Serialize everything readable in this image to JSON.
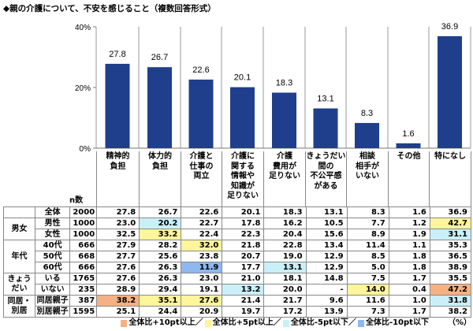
{
  "title": "◆親の介護について、不安を感じること（複数回答形式）",
  "chart_data": {
    "type": "bar",
    "title": "◆親の介護について、不安を感じること（複数回答形式）",
    "categories": [
      "精神的\n負担",
      "体力的\n負担",
      "介護と\n仕事の\n両立",
      "介護に\n関する\n情報や\n知識が\n足りない",
      "介護\n費用が\n足りない",
      "きょうだい\n間の\n不公平感\nがある",
      "相談\n相手が\nいない",
      "その他",
      "特になし"
    ],
    "values": [
      27.8,
      26.7,
      22.6,
      20.1,
      18.3,
      13.1,
      8.3,
      1.6,
      36.9
    ],
    "ylim": [
      0,
      40
    ],
    "yticks": [
      "0%",
      "20%",
      "40%"
    ],
    "ytick_values": [
      0,
      20,
      40
    ],
    "bar_color": "#1f3f8c",
    "grid": "vertical column separators",
    "data_labels": [
      "27.8",
      "26.7",
      "22.6",
      "20.1",
      "18.3",
      "13.1",
      "8.3",
      "1.6",
      "36.9"
    ]
  },
  "table": {
    "n_header": "n数",
    "highlight_colors": {
      "p10": "#f6b183",
      "p5": "#fff59a",
      "m5": "#c9f0f9",
      "m10": "#8eb8ee"
    },
    "groups": [
      {
        "label": "",
        "rows": [
          0
        ]
      },
      {
        "label": "男女",
        "rows": [
          1,
          2
        ]
      },
      {
        "label": "年代",
        "rows": [
          3,
          4,
          5
        ]
      },
      {
        "label": "きょうだい",
        "rows": [
          6,
          7
        ]
      },
      {
        "label": "同居・別居",
        "rows": [
          8,
          9
        ]
      }
    ],
    "rows": [
      {
        "label": "全体",
        "n": "2000",
        "values": [
          "27.8",
          "26.7",
          "22.6",
          "20.1",
          "18.3",
          "13.1",
          "8.3",
          "1.6",
          "36.9"
        ],
        "hl": [
          null,
          null,
          null,
          null,
          null,
          null,
          null,
          null,
          null
        ]
      },
      {
        "label": "男性",
        "n": "1000",
        "values": [
          "23.0",
          "20.2",
          "22.7",
          "17.8",
          "16.2",
          "10.5",
          "7.7",
          "1.2",
          "42.7"
        ],
        "hl": [
          null,
          "m5",
          null,
          null,
          null,
          null,
          null,
          null,
          "p5"
        ]
      },
      {
        "label": "女性",
        "n": "1000",
        "values": [
          "32.5",
          "33.2",
          "22.4",
          "22.3",
          "20.4",
          "15.6",
          "8.9",
          "1.9",
          "31.1"
        ],
        "hl": [
          null,
          "p5",
          null,
          null,
          null,
          null,
          null,
          null,
          "m5"
        ]
      },
      {
        "label": "40代",
        "n": "666",
        "values": [
          "27.9",
          "28.2",
          "32.0",
          "21.8",
          "22.8",
          "13.4",
          "11.4",
          "1.1",
          "35.3"
        ],
        "hl": [
          null,
          null,
          "p5",
          null,
          null,
          null,
          null,
          null,
          null
        ]
      },
      {
        "label": "50代",
        "n": "668",
        "values": [
          "27.7",
          "25.6",
          "23.8",
          "20.7",
          "19.0",
          "12.9",
          "8.5",
          "1.8",
          "36.5"
        ],
        "hl": [
          null,
          null,
          null,
          null,
          null,
          null,
          null,
          null,
          null
        ]
      },
      {
        "label": "60代",
        "n": "666",
        "values": [
          "27.6",
          "26.3",
          "11.9",
          "17.7",
          "13.1",
          "12.9",
          "5.0",
          "1.8",
          "38.9"
        ],
        "hl": [
          null,
          null,
          "m10",
          null,
          "m5",
          null,
          null,
          null,
          null
        ]
      },
      {
        "label": "いる",
        "n": "1765",
        "values": [
          "27.6",
          "26.3",
          "23.0",
          "21.0",
          "18.1",
          "14.8",
          "7.5",
          "1.7",
          "35.5"
        ],
        "hl": [
          null,
          null,
          null,
          null,
          null,
          null,
          null,
          null,
          null
        ]
      },
      {
        "label": "いない",
        "n": "235",
        "values": [
          "28.9",
          "29.4",
          "19.1",
          "13.2",
          "20.0",
          "-",
          "14.0",
          "0.4",
          "47.2"
        ],
        "hl": [
          null,
          null,
          null,
          "m5",
          null,
          null,
          "p5",
          null,
          "p10"
        ]
      },
      {
        "label": "同居親子",
        "n": "387",
        "values": [
          "38.2",
          "35.1",
          "27.6",
          "21.4",
          "21.7",
          "9.6",
          "11.6",
          "1.0",
          "31.8"
        ],
        "hl": [
          "p10",
          "p5",
          "p5",
          null,
          null,
          null,
          null,
          null,
          "m5"
        ]
      },
      {
        "label": "別居親子",
        "n": "1595",
        "values": [
          "25.1",
          "24.4",
          "20.9",
          "19.7",
          "17.2",
          "13.9",
          "7.3",
          "1.7",
          "38.2"
        ],
        "hl": [
          null,
          null,
          null,
          null,
          null,
          null,
          null,
          null,
          null
        ]
      }
    ]
  },
  "legend": [
    {
      "key": "p10",
      "label": "全体比+10pt以上／"
    },
    {
      "key": "p5",
      "label": "全体比+5pt以上／"
    },
    {
      "key": "m5",
      "label": "全体比-5pt以下／"
    },
    {
      "key": "m10",
      "label": "全体比-10pt以下"
    }
  ],
  "unit": "（%）"
}
